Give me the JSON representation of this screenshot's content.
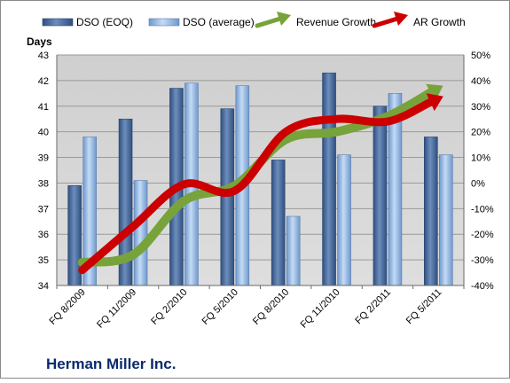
{
  "chart_data": {
    "type": "bar",
    "company": "Herman Miller Inc.",
    "y_left_label": "Days",
    "y_left_range": [
      34,
      43
    ],
    "y_left_ticks": [
      "34",
      "35",
      "36",
      "37",
      "38",
      "39",
      "40",
      "41",
      "42",
      "43"
    ],
    "y_right_range": [
      -40,
      50
    ],
    "y_right_ticks": [
      "-40%",
      "-30%",
      "-20%",
      "-10%",
      "0%",
      "10%",
      "20%",
      "30%",
      "40%",
      "50%"
    ],
    "categories": [
      "FQ 8/2009",
      "FQ 11/2009",
      "FQ 2/2010",
      "FQ 5/2010",
      "FQ 8/2010",
      "FQ 11/2010",
      "FQ 2/2011",
      "FQ 5/2011"
    ],
    "legend_position": "top",
    "bar_series": [
      {
        "name": "DSO (EOQ)",
        "axis": "left",
        "color": "#4a6a9c",
        "values": [
          37.9,
          40.5,
          41.7,
          40.9,
          38.9,
          42.3,
          41.0,
          39.8
        ]
      },
      {
        "name": "DSO (average)",
        "axis": "left",
        "color": "#8fb4e3",
        "values": [
          39.8,
          38.1,
          41.9,
          41.8,
          36.7,
          39.1,
          41.5,
          39.1
        ]
      }
    ],
    "line_series": [
      {
        "name": "Revenue Growth",
        "axis": "right",
        "color": "#77a33a",
        "values": [
          -31,
          -28,
          -7,
          -1,
          17,
          20,
          26,
          37
        ]
      },
      {
        "name": "AR Growth",
        "axis": "right",
        "color": "#cc0000",
        "values": [
          -34,
          -17,
          -0.5,
          -3,
          20,
          25,
          24,
          33
        ]
      }
    ],
    "gridlines": true
  }
}
